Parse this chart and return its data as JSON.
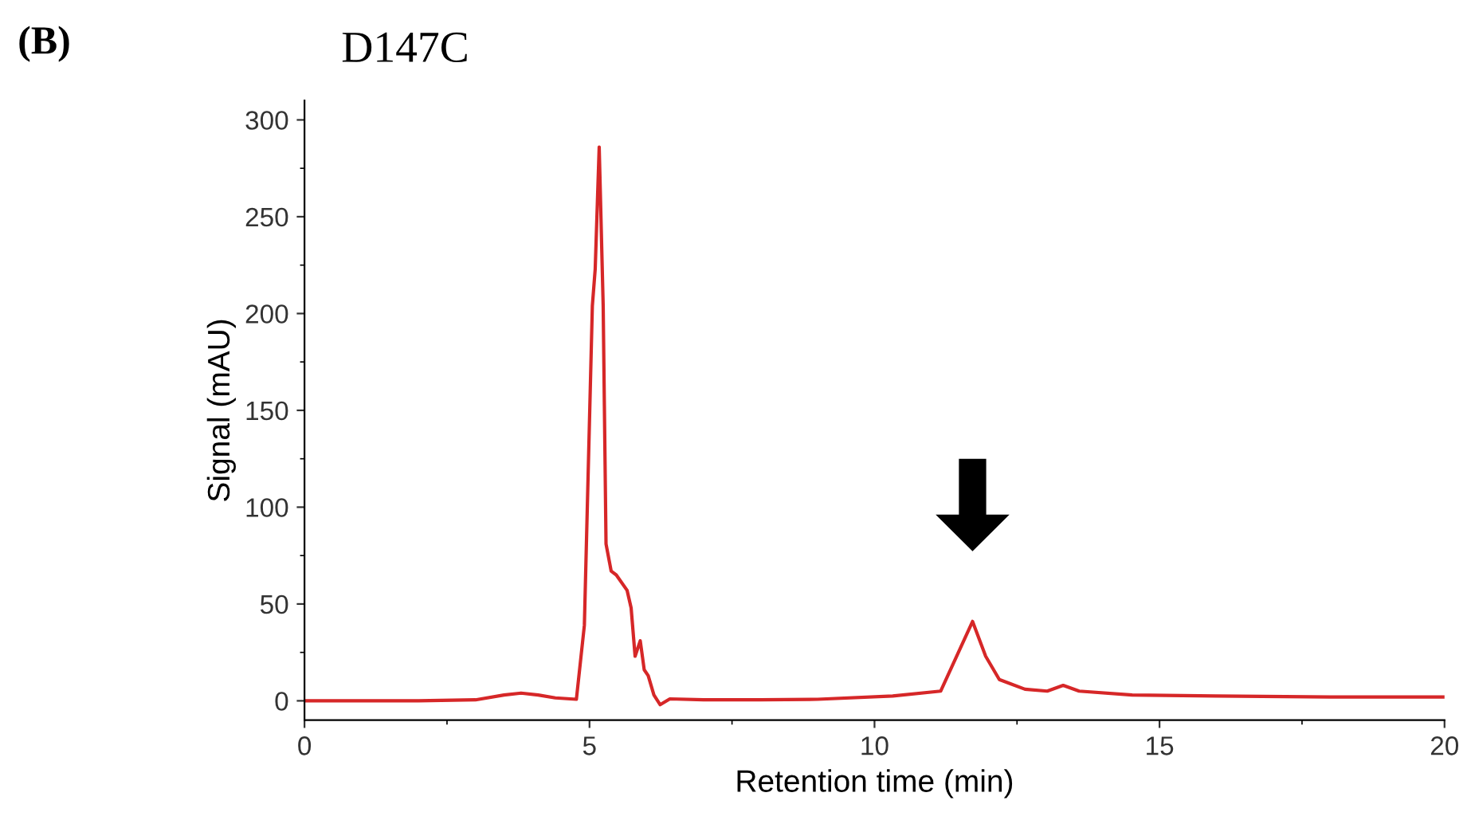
{
  "chart_data": {
    "type": "line",
    "title": "D147C",
    "xlabel": "Retention time (min)",
    "ylabel": "Signal (mAU)",
    "annotations": [
      "(B)"
    ],
    "xlim": [
      0,
      20
    ],
    "xticks": [
      0,
      5,
      10,
      15,
      20
    ],
    "ylim": [
      -10,
      310
    ],
    "yticks": [
      0,
      50,
      100,
      150,
      200,
      250,
      300
    ],
    "grid": false,
    "legend": false,
    "marker": "none",
    "line_style": "solid",
    "series": [
      {
        "color": "#d62728",
        "x": [
          0,
          1,
          2,
          3,
          3.5,
          3.8,
          4.1,
          4.4,
          4.77,
          4.91,
          5.05,
          5.1,
          5.17,
          5.24,
          5.29,
          5.38,
          5.47,
          5.66,
          5.73,
          5.8,
          5.89,
          5.96,
          6.03,
          6.13,
          6.24,
          6.41,
          7,
          8,
          9,
          10.32,
          11.16,
          11.44,
          11.72,
          11.95,
          12.19,
          12.64,
          13.03,
          13.31,
          13.59,
          14.52,
          16,
          18,
          20
        ],
        "values": [
          0,
          0,
          0,
          0.5,
          3,
          4,
          3,
          1.5,
          0.8,
          39,
          204,
          223,
          286,
          204,
          81,
          67,
          65,
          57,
          48,
          23,
          31,
          16,
          13,
          3,
          -2,
          1,
          0.5,
          0.5,
          0.8,
          2.5,
          5,
          23,
          41,
          23,
          11,
          6,
          5,
          8,
          5,
          3,
          2.5,
          2,
          2
        ]
      }
    ]
  }
}
